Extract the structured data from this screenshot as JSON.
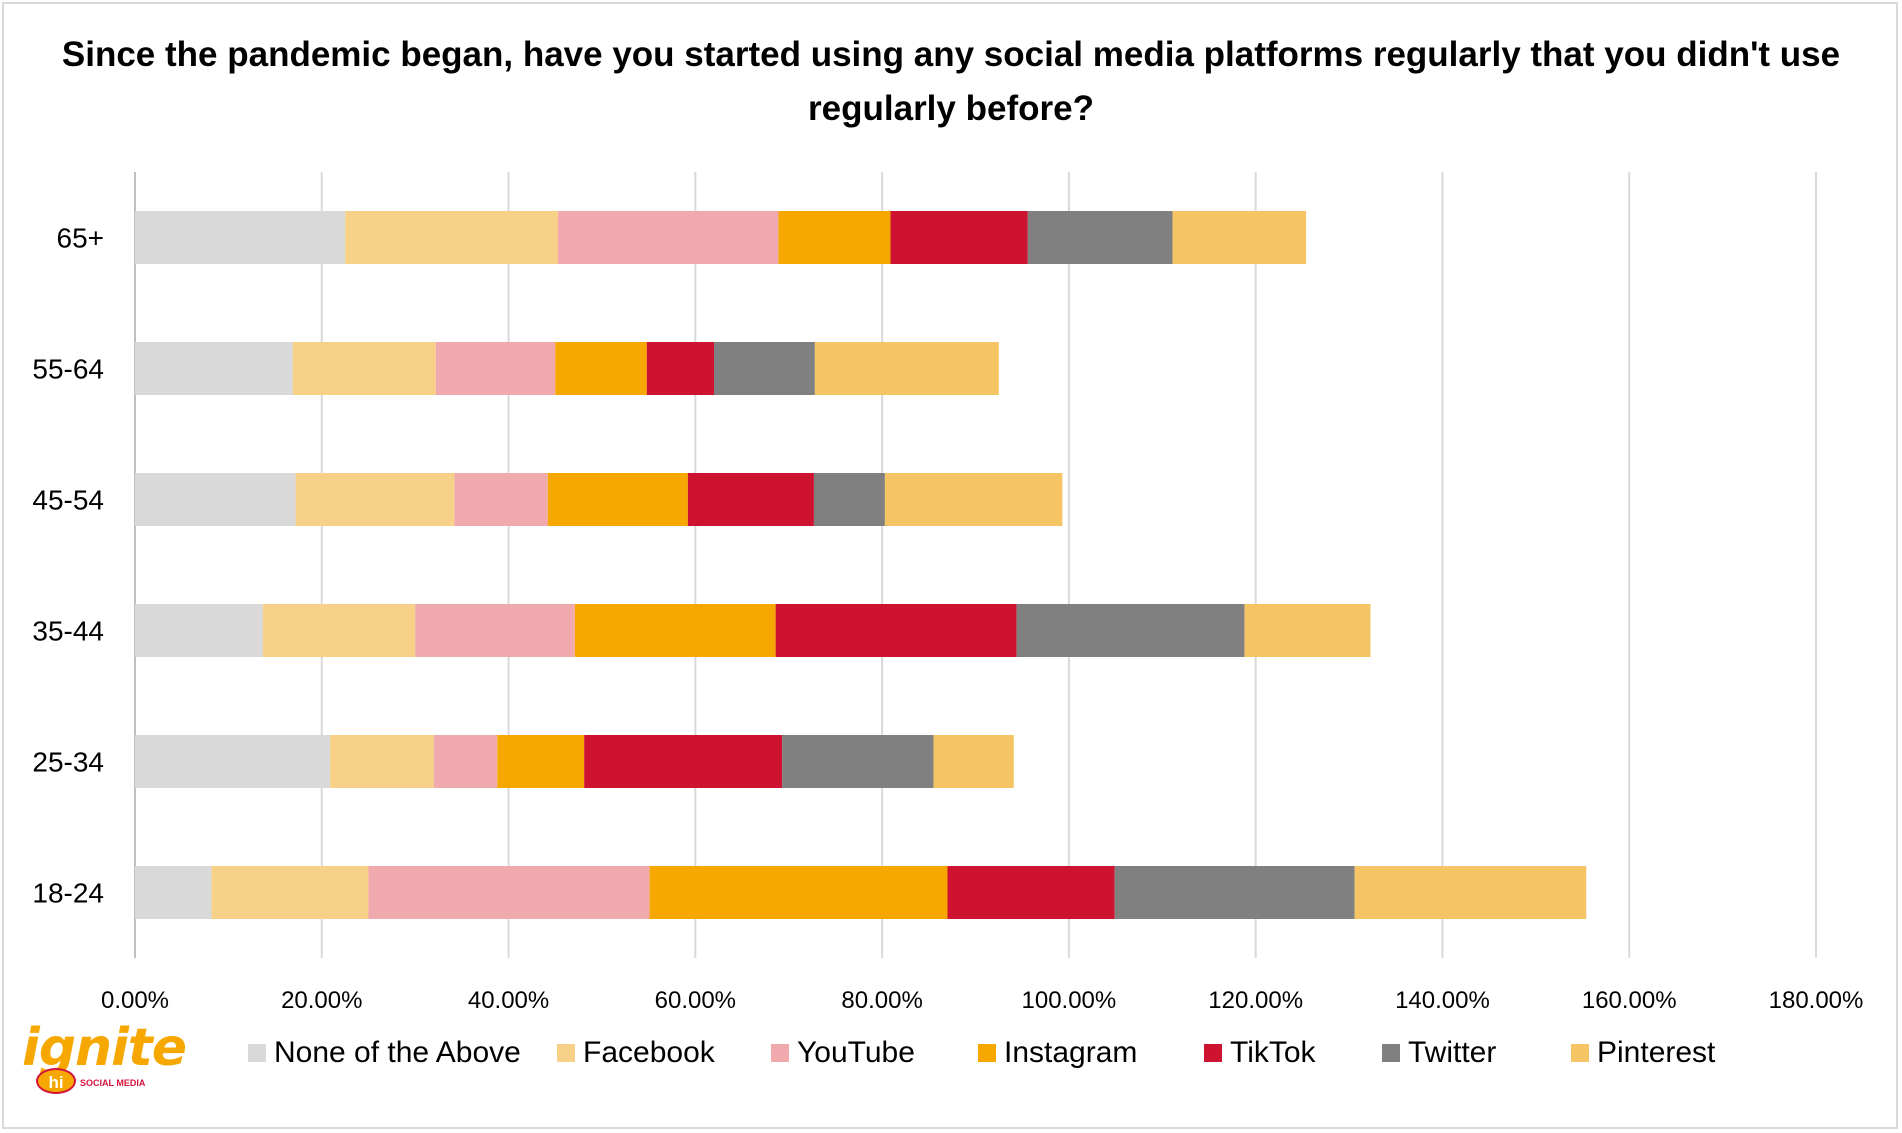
{
  "chart_data": {
    "type": "bar",
    "orientation": "horizontal",
    "stacked": true,
    "title": "Since the pandemic began, have you started using any social media platforms regularly that you didn't use regularly before?",
    "categories": [
      "65+",
      "55-64",
      "45-54",
      "35-44",
      "25-34",
      "18-24"
    ],
    "series": [
      {
        "name": "None of the Above",
        "color": "#d9d9d9",
        "values": [
          22.5,
          16.9,
          17.2,
          13.7,
          20.9,
          8.2
        ]
      },
      {
        "name": "Facebook",
        "color": "#f7d188",
        "values": [
          22.8,
          15.3,
          17.0,
          16.3,
          11.1,
          16.8
        ]
      },
      {
        "name": "YouTube",
        "color": "#f0aaae",
        "values": [
          23.6,
          12.8,
          10.0,
          17.1,
          6.8,
          30.1
        ]
      },
      {
        "name": "Instagram",
        "color": "#f6a800",
        "values": [
          12.0,
          9.8,
          15.0,
          21.5,
          9.3,
          31.9
        ]
      },
      {
        "name": "TikTok",
        "color": "#ce1331",
        "values": [
          14.7,
          7.2,
          13.5,
          25.8,
          21.2,
          17.9
        ]
      },
      {
        "name": "Twitter",
        "color": "#808080",
        "values": [
          15.5,
          10.8,
          7.6,
          24.4,
          16.2,
          25.7
        ]
      },
      {
        "name": "Pinterest",
        "color": "#f5c565",
        "values": [
          14.3,
          19.7,
          19.0,
          13.5,
          8.6,
          24.8
        ]
      }
    ],
    "xlim": [
      0,
      180
    ],
    "xticks": [
      "0.00%",
      "20.00%",
      "40.00%",
      "60.00%",
      "80.00%",
      "100.00%",
      "120.00%",
      "140.00%",
      "160.00%",
      "180.00%"
    ],
    "grid": "vertical",
    "legend_position": "bottom"
  },
  "logo": {
    "word": "ignite",
    "badge": "hi",
    "sub": "SOCIAL MEDIA"
  }
}
